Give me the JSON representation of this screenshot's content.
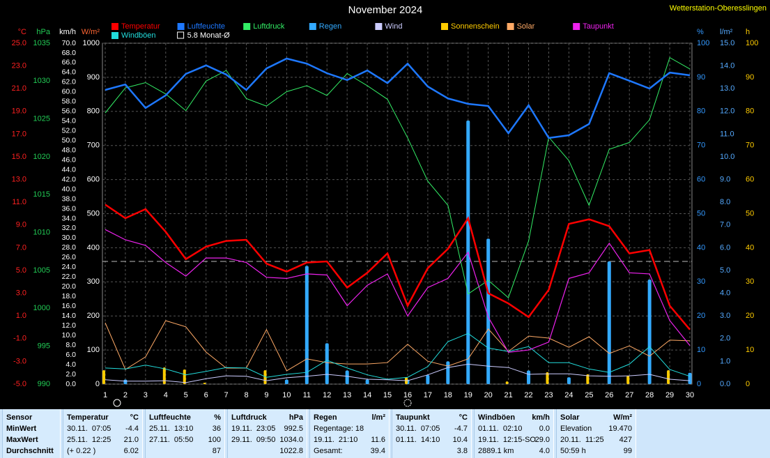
{
  "chart_data": {
    "type": "combo",
    "title": "November 2024",
    "station": "Wetterstation-Oberesslingen",
    "categories": [
      "1",
      "2",
      "3",
      "4",
      "5",
      "6",
      "7",
      "8",
      "9",
      "10",
      "11",
      "12",
      "13",
      "14",
      "15",
      "16",
      "17",
      "18",
      "19",
      "20",
      "21",
      "22",
      "23",
      "24",
      "25",
      "26",
      "27",
      "28",
      "29",
      "30"
    ],
    "grid": true,
    "axes": [
      {
        "unit": "°C",
        "color": "#ff2020",
        "side": "left",
        "lim": [
          -5,
          25
        ],
        "ticks": [
          {
            "value": -5,
            "label": "-5.0"
          },
          {
            "value": -3,
            "label": "-3.0"
          },
          {
            "value": -1,
            "label": "-1.0"
          },
          {
            "value": 1,
            "label": "1.0"
          },
          {
            "value": 3,
            "label": "3.0"
          },
          {
            "value": 5,
            "label": "5.0"
          },
          {
            "value": 7,
            "label": "7.0"
          },
          {
            "value": 9,
            "label": "9.0"
          },
          {
            "value": 11,
            "label": "11.0"
          },
          {
            "value": 13,
            "label": "13.0"
          },
          {
            "value": 15,
            "label": "15.0"
          },
          {
            "value": 17,
            "label": "17.0"
          },
          {
            "value": 19,
            "label": "19.0"
          },
          {
            "value": 21,
            "label": "21.0"
          },
          {
            "value": 23,
            "label": "23.0"
          },
          {
            "value": 25,
            "label": "25.0"
          }
        ]
      },
      {
        "unit": "hPa",
        "color": "#22cc55",
        "side": "left",
        "lim": [
          990,
          1035
        ],
        "ticks": [
          990,
          995,
          1000,
          1005,
          1010,
          1015,
          1020,
          1025,
          1030,
          1035
        ]
      },
      {
        "unit": "km/h",
        "color": "#ffffff",
        "side": "left",
        "lim": [
          0,
          70
        ],
        "ticks": [
          {
            "value": 0,
            "label": "0.0"
          },
          {
            "value": 2,
            "label": "2.0"
          },
          {
            "value": 4,
            "label": "4.0"
          },
          {
            "value": 6,
            "label": "6.0"
          },
          {
            "value": 8,
            "label": "8.0"
          },
          {
            "value": 10,
            "label": "10.0"
          },
          {
            "value": 12,
            "label": "12.0"
          },
          {
            "value": 14,
            "label": "14.0"
          },
          {
            "value": 16,
            "label": "16.0"
          },
          {
            "value": 18,
            "label": "18.0"
          },
          {
            "value": 20,
            "label": "20.0"
          },
          {
            "value": 22,
            "label": "22.0"
          },
          {
            "value": 24,
            "label": "24.0"
          },
          {
            "value": 26,
            "label": "26.0"
          },
          {
            "value": 28,
            "label": "28.0"
          },
          {
            "value": 30,
            "label": "30.0"
          },
          {
            "value": 32,
            "label": "32.0"
          },
          {
            "value": 34,
            "label": "34.0"
          },
          {
            "value": 36,
            "label": "36.0"
          },
          {
            "value": 38,
            "label": "38.0"
          },
          {
            "value": 40,
            "label": "40.0"
          },
          {
            "value": 42,
            "label": "42.0"
          },
          {
            "value": 44,
            "label": "44.0"
          },
          {
            "value": 46,
            "label": "46.0"
          },
          {
            "value": 48,
            "label": "48.0"
          },
          {
            "value": 50,
            "label": "50.0"
          },
          {
            "value": 52,
            "label": "52.0"
          },
          {
            "value": 54,
            "label": "54.0"
          },
          {
            "value": 56,
            "label": "56.0"
          },
          {
            "value": 58,
            "label": "58.0"
          },
          {
            "value": 60,
            "label": "60.0"
          },
          {
            "value": 62,
            "label": "62.0"
          },
          {
            "value": 64,
            "label": "64.0"
          },
          {
            "value": 66,
            "label": "66.0"
          },
          {
            "value": 68,
            "label": "68.0"
          },
          {
            "value": 70,
            "label": "70.0"
          }
        ]
      },
      {
        "unit": "W/m²",
        "color": "#ffffff",
        "side": "left",
        "lim": [
          0,
          1000
        ],
        "ticks": [
          0,
          100,
          200,
          300,
          400,
          500,
          600,
          700,
          800,
          900,
          1000
        ],
        "grid": true
      },
      {
        "unit": "%",
        "color": "#3399ff",
        "side": "right",
        "lim": [
          0,
          100
        ],
        "ticks": [
          0,
          10,
          20,
          30,
          40,
          50,
          60,
          70,
          80,
          90,
          100
        ]
      },
      {
        "unit": "l/m²",
        "color": "#55aaff",
        "side": "right",
        "lim": [
          0,
          15
        ],
        "ticks": [
          {
            "value": 0,
            "label": "0.0"
          },
          {
            "value": 1,
            "label": "1.0"
          },
          {
            "value": 2,
            "label": "2.0"
          },
          {
            "value": 3,
            "label": "3.0"
          },
          {
            "value": 4,
            "label": "4.0"
          },
          {
            "value": 5,
            "label": "5.0"
          },
          {
            "value": 6,
            "label": "6.0"
          },
          {
            "value": 7,
            "label": "7.0"
          },
          {
            "value": 8,
            "label": "8.0"
          },
          {
            "value": 9,
            "label": "9.0"
          },
          {
            "value": 10,
            "label": "10.0"
          },
          {
            "value": 11,
            "label": "11.0"
          },
          {
            "value": 12,
            "label": "12.0"
          },
          {
            "value": 13,
            "label": "13.0"
          },
          {
            "value": 14,
            "label": "14.0"
          },
          {
            "value": 15,
            "label": "15.0"
          }
        ]
      },
      {
        "unit": "h",
        "color": "#ffcc00",
        "side": "right",
        "lim": [
          0,
          100
        ],
        "ticks": [
          0,
          10,
          20,
          30,
          40,
          50,
          60,
          70,
          80,
          90,
          100
        ]
      }
    ],
    "series": [
      {
        "name": "Temperatur",
        "color": "#ff0000",
        "axis": 0,
        "kind": "line",
        "width": 2.5,
        "values": [
          10.8,
          9.6,
          10.4,
          8.4,
          6.0,
          7.1,
          7.6,
          7.7,
          5.6,
          4.9,
          5.7,
          5.8,
          3.5,
          4.8,
          6.5,
          1.9,
          5.2,
          6.9,
          9.6,
          3.0,
          2.1,
          0.9,
          3.3,
          9.1,
          9.5,
          8.9,
          6.5,
          6.8,
          1.9,
          -0.2
        ]
      },
      {
        "name": "Luftfeuchte",
        "color": "#1e78ff",
        "axis": 4,
        "kind": "line",
        "width": 2.5,
        "values": [
          86.3,
          87.9,
          81,
          84.7,
          91,
          93.5,
          90.8,
          86.3,
          92.6,
          95.5,
          94,
          91.2,
          89.2,
          92,
          88.3,
          94,
          87.3,
          83.8,
          82.2,
          81.6,
          73.6,
          81.8,
          72.2,
          73,
          76.3,
          91.2,
          89,
          86.7,
          91.4,
          90.6
        ]
      },
      {
        "name": "Luftdruck",
        "color": "#33ee66",
        "axis": 1,
        "kind": "line",
        "width": 1,
        "values": [
          1025.8,
          1029.1,
          1029.8,
          1028.3,
          1026.1,
          1030.0,
          1031.4,
          1027.7,
          1026.7,
          1028.6,
          1029.4,
          1028.1,
          1031.0,
          1029.4,
          1027.6,
          1022.5,
          1016.8,
          1013.6,
          1001.9,
          1003.7,
          1001.4,
          1008.9,
          1022.6,
          1019.5,
          1013.6,
          1021.0,
          1021.9,
          1024.9,
          1033.1,
          1031.6
        ]
      },
      {
        "name": "Regen",
        "color": "#33aaff",
        "axis": 5,
        "kind": "bar",
        "width": 5,
        "values": [
          0,
          0.2,
          0,
          0,
          0,
          0,
          0,
          0,
          0,
          0.2,
          5.2,
          1.8,
          0.6,
          0.2,
          0,
          0.2,
          0.4,
          1.0,
          11.6,
          6.4,
          0,
          0.6,
          0,
          0.3,
          0,
          5.4,
          0,
          4.6,
          0,
          0.5
        ]
      },
      {
        "name": "Wind",
        "color": "#ccccff",
        "axis": 2,
        "kind": "line",
        "width": 1,
        "values": [
          0.9,
          0.6,
          0.6,
          0.7,
          0.3,
          1.1,
          1.7,
          1.6,
          0.7,
          1.3,
          1.6,
          2.0,
          1.6,
          1.0,
          0.9,
          0.7,
          1.9,
          3.4,
          4.1,
          3.7,
          3.4,
          2.0,
          2.1,
          2.1,
          1.7,
          1.6,
          1.7,
          2.0,
          1.0,
          0.7
        ]
      },
      {
        "name": "Sonnenschein",
        "color": "#ffcc00",
        "axis": 6,
        "kind": "bar",
        "width": 4,
        "values": [
          4.1,
          0,
          0,
          4.9,
          4.3,
          0.4,
          0,
          0,
          4.1,
          0,
          0,
          0,
          0,
          0,
          0,
          2.0,
          0,
          0,
          0,
          0,
          0.8,
          0,
          3.5,
          0,
          2.9,
          0,
          2.5,
          0,
          4.1,
          0
        ]
      },
      {
        "name": "Solar",
        "color": "#ffaa66",
        "axis": 3,
        "kind": "line",
        "width": 1,
        "values": [
          180,
          43,
          80,
          186,
          168,
          94,
          47,
          47,
          160,
          39,
          74,
          63,
          59,
          59,
          63,
          117,
          67,
          53,
          74,
          162,
          96,
          141,
          135,
          108,
          139,
          90,
          112,
          82,
          129,
          127
        ]
      },
      {
        "name": "Taupunkt",
        "color": "#ee22ee",
        "axis": 0,
        "kind": "line",
        "width": 1.2,
        "values": [
          8.6,
          7.7,
          7.2,
          5.7,
          4.5,
          6.1,
          6.1,
          5.7,
          4.4,
          4.3,
          4.7,
          4.6,
          1.9,
          3.7,
          4.7,
          1.0,
          3.5,
          4.3,
          6.6,
          0.9,
          -2.2,
          -2.0,
          -1.3,
          4.3,
          4.8,
          7.4,
          4.8,
          4.7,
          0.6,
          -1.6
        ]
      },
      {
        "name": "Windböen",
        "color": "#22dddd",
        "axis": 2,
        "kind": "line",
        "width": 1,
        "values": [
          3.3,
          3.1,
          3.9,
          3.1,
          1.9,
          2.6,
          3.4,
          3.3,
          1.4,
          2.0,
          2.4,
          4.9,
          3.3,
          1.9,
          1.0,
          1.4,
          3.6,
          8.7,
          10.4,
          7.4,
          6.7,
          7.7,
          4.4,
          4.4,
          3.1,
          2.4,
          4.1,
          7.7,
          3.0,
          1.6
        ]
      }
    ],
    "average": {
      "name": "5.8 Monat-Ø",
      "value": 5.8,
      "axis": 0
    }
  },
  "stats": {
    "columns": [
      {
        "title": "Sensor",
        "rows": [
          {
            "label": "MinWert"
          },
          {
            "label": "MaxWert"
          },
          {
            "label": "Durchschnitt"
          }
        ]
      },
      {
        "title": "Temperatur",
        "unit": "°C",
        "rows": [
          {
            "label": "30.11.  07:05",
            "value": "-4.4"
          },
          {
            "label": "25.11.  12:25",
            "value": "21.0"
          },
          {
            "label": "(+ 0.22 )",
            "value": "6.02"
          }
        ]
      },
      {
        "title": "Luftfeuchte",
        "unit": "%",
        "rows": [
          {
            "label": "25.11.  13:10",
            "value": "36"
          },
          {
            "label": "27.11.  05:50",
            "value": "100"
          },
          {
            "value": "87"
          }
        ]
      },
      {
        "title": "Luftdruck",
        "unit": "hPa",
        "rows": [
          {
            "label": "19.11.  23:05",
            "value": "992.5"
          },
          {
            "label": "29.11.  09:50",
            "value": "1034.0"
          },
          {
            "value": "1022.8"
          }
        ]
      },
      {
        "title": "Regen",
        "unit": "l/m²",
        "rows": [
          {
            "label": "Regentage: 18"
          },
          {
            "label": "19.11.  21:10",
            "value": "11.6"
          },
          {
            "label": "Gesamt:",
            "value": "39.4"
          }
        ]
      },
      {
        "title": "Taupunkt",
        "unit": "°C",
        "rows": [
          {
            "label": "30.11.  07:05",
            "value": "-4.7"
          },
          {
            "label": "01.11.  14:10",
            "value": "10.4"
          },
          {
            "value": "3.8"
          }
        ]
      },
      {
        "title": "Windböen",
        "unit": "km/h",
        "rows": [
          {
            "label": "01.11.  02:10",
            "value": "0.0"
          },
          {
            "label": "19.11.  12:15-SO",
            "value": "29.0"
          },
          {
            "label": "2889.1 km",
            "value": "4.0"
          }
        ]
      },
      {
        "title": "Solar",
        "unit": "W/m²",
        "rows": [
          {
            "label": "Elevation",
            "value": "19.470"
          },
          {
            "label": "20.11.  11:25",
            "value": "427"
          },
          {
            "label": "50:59 h",
            "value": "99"
          }
        ]
      }
    ]
  }
}
